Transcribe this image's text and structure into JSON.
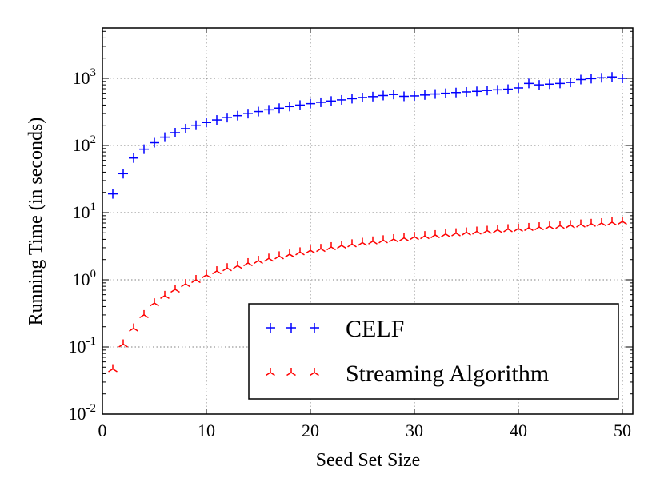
{
  "chart_data": {
    "type": "scatter",
    "xlabel": "Seed Set Size",
    "ylabel": "Running Time (in seconds)",
    "title": "",
    "xlim": [
      0,
      51
    ],
    "ylim_log10": [
      -2,
      3.75
    ],
    "yscale": "log",
    "grid": true,
    "legend_position": "bottom-right",
    "x_ticks": [
      0,
      10,
      20,
      30,
      40,
      50
    ],
    "x_tick_labels": [
      "0",
      "10",
      "20",
      "30",
      "40",
      "50"
    ],
    "y_ticks": [
      -2,
      -1,
      0,
      1,
      2,
      3
    ],
    "y_tick_labels": [
      {
        "base": "10",
        "exp": "-2"
      },
      {
        "base": "10",
        "exp": "-1"
      },
      {
        "base": "10",
        "exp": "0"
      },
      {
        "base": "10",
        "exp": "1"
      },
      {
        "base": "10",
        "exp": "2"
      },
      {
        "base": "10",
        "exp": "3"
      }
    ],
    "x": [
      1,
      2,
      3,
      4,
      5,
      6,
      7,
      8,
      9,
      10,
      11,
      12,
      13,
      14,
      15,
      16,
      17,
      18,
      19,
      20,
      21,
      22,
      23,
      24,
      25,
      26,
      27,
      28,
      29,
      30,
      31,
      32,
      33,
      34,
      35,
      36,
      37,
      38,
      39,
      40,
      41,
      42,
      43,
      44,
      45,
      46,
      47,
      48,
      49,
      50
    ],
    "series": [
      {
        "name": "CELF",
        "color": "#0000ff",
        "marker": "plus",
        "values": [
          19,
          38,
          65,
          88,
          110,
          133,
          155,
          178,
          200,
          220,
          240,
          260,
          278,
          298,
          320,
          340,
          360,
          380,
          400,
          420,
          440,
          460,
          478,
          498,
          518,
          535,
          555,
          575,
          540,
          548,
          565,
          585,
          600,
          615,
          628,
          640,
          660,
          675,
          690,
          720,
          840,
          800,
          820,
          840,
          870,
          960,
          990,
          1020,
          1050,
          1000
        ]
      },
      {
        "name": "Streaming Algorithm",
        "color": "#ff0000",
        "marker": "tri",
        "values": [
          0.047,
          0.11,
          0.19,
          0.3,
          0.45,
          0.58,
          0.72,
          0.87,
          1.0,
          1.18,
          1.35,
          1.5,
          1.62,
          1.78,
          1.93,
          2.08,
          2.25,
          2.4,
          2.58,
          2.75,
          2.9,
          3.08,
          3.25,
          3.4,
          3.58,
          3.75,
          3.9,
          4.05,
          4.2,
          4.38,
          4.5,
          4.65,
          4.8,
          4.95,
          5.1,
          5.25,
          5.4,
          5.55,
          5.7,
          5.8,
          5.95,
          6.1,
          6.25,
          6.4,
          6.55,
          6.7,
          6.85,
          7.0,
          7.2,
          7.4
        ]
      }
    ]
  }
}
